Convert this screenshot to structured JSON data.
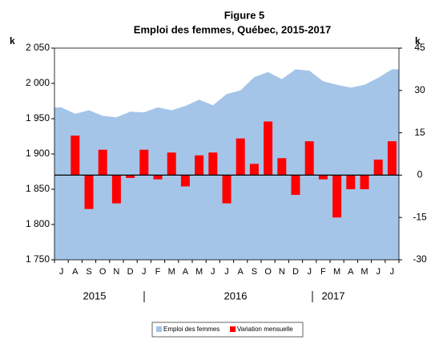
{
  "chart_data": {
    "type": "bar-area",
    "title": "Figure 5",
    "subtitle": "Emploi des femmes, Québec, 2015-2017",
    "y_axis_label": "k",
    "y2_axis_label": "k",
    "categories": [
      "J",
      "A",
      "S",
      "O",
      "N",
      "D",
      "J",
      "F",
      "M",
      "A",
      "M",
      "J",
      "J",
      "A",
      "S",
      "O",
      "N",
      "D",
      "J",
      "F",
      "M",
      "A",
      "M",
      "J",
      "J"
    ],
    "year_labels": [
      "2015",
      "2016",
      "2017"
    ],
    "series": [
      {
        "name": "Emploi des femmes",
        "color": "#a4c5e8",
        "kind": "area",
        "values": [
          1966,
          1957,
          1962,
          1954,
          1952,
          1960,
          1959,
          1966,
          1962,
          1968,
          1977,
          1969,
          1985,
          1990,
          2009,
          2016,
          2006,
          2020,
          2018,
          2003,
          1998,
          1994,
          1998,
          2008,
          2020
        ]
      },
      {
        "name": "Variation mensuelle",
        "color": "#ff0000",
        "kind": "bar",
        "axis": "y2",
        "values": [
          null,
          14,
          -12,
          9,
          -10,
          -1,
          9,
          -1.5,
          8,
          -4,
          7,
          8,
          -10,
          13,
          4,
          19,
          6,
          -7,
          12,
          -1.5,
          -15,
          -5,
          -5,
          5.5,
          12
        ]
      }
    ],
    "ylim": [
      1750,
      2050
    ],
    "yticks": [
      {
        "value": 1750,
        "label": "1 750"
      },
      {
        "value": 1800,
        "label": "1 800"
      },
      {
        "value": 1850,
        "label": "1 850"
      },
      {
        "value": 1900,
        "label": "1 900"
      },
      {
        "value": 1950,
        "label": "1 950"
      },
      {
        "value": 2000,
        "label": "2 000"
      },
      {
        "value": 2050,
        "label": "2 050"
      }
    ],
    "y2lim": [
      -30,
      45
    ],
    "y2ticks": [
      -30,
      -15,
      0,
      15,
      30,
      45
    ]
  }
}
